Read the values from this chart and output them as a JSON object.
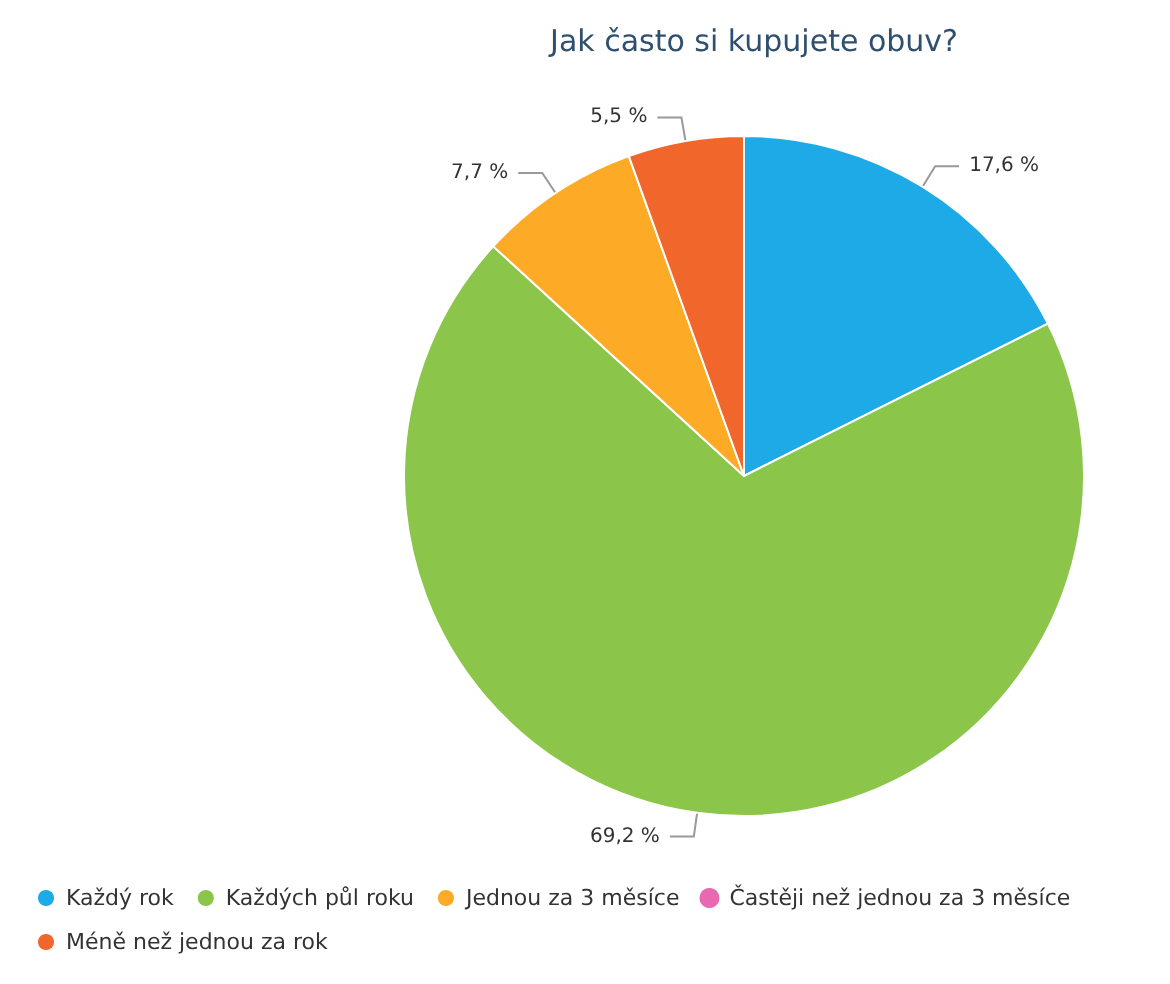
{
  "chart_data": {
    "type": "pie",
    "title": "Jak často si kupujete obuv?",
    "categories": [
      "Každý rok",
      "Každých půl roku",
      "Jednou za 3 měsíce",
      "Častěji než jednou za 3 měsíce",
      "Méně než jednou za rok"
    ],
    "values": [
      17.6,
      69.2,
      7.7,
      0,
      5.5
    ],
    "colors": [
      "#1eaae7",
      "#8bc64a",
      "#fdab27",
      "#e868b2",
      "#f1662a"
    ],
    "value_labels": [
      "17,6 %",
      "69,2 %",
      "7,7 %",
      null,
      "5,5 %"
    ],
    "legend": "bottom left"
  }
}
